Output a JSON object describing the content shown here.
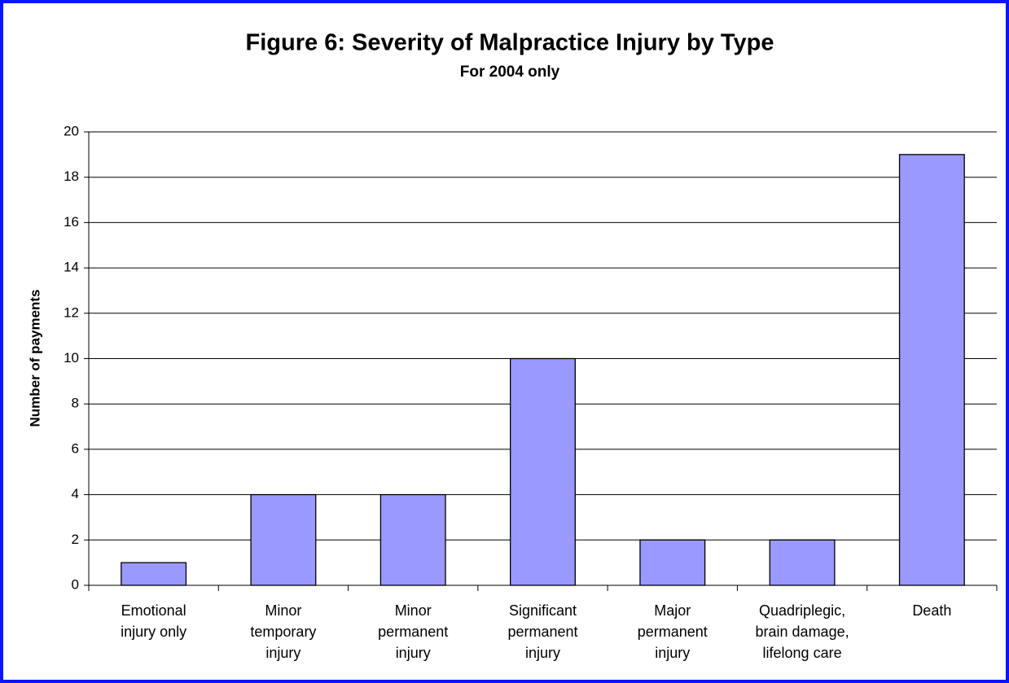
{
  "chart_data": {
    "type": "bar",
    "title": "Figure 6: Severity of Malpractice Injury by Type",
    "subtitle": "For 2004 only",
    "y_label": "Number of payments",
    "categories": [
      "Emotional injury only",
      "Minor temporary injury",
      "Minor permanent injury",
      "Significant permanent injury",
      "Major permanent injury",
      "Quadriplegic, brain damage, lifelong care",
      "Death"
    ],
    "values": [
      1,
      4,
      4,
      10,
      2,
      2,
      19
    ],
    "color": "#9999ff",
    "ylim": [
      0,
      20
    ],
    "yticks": [
      0,
      2,
      4,
      6,
      8,
      10,
      12,
      14,
      16,
      18,
      20
    ],
    "grid": true
  }
}
